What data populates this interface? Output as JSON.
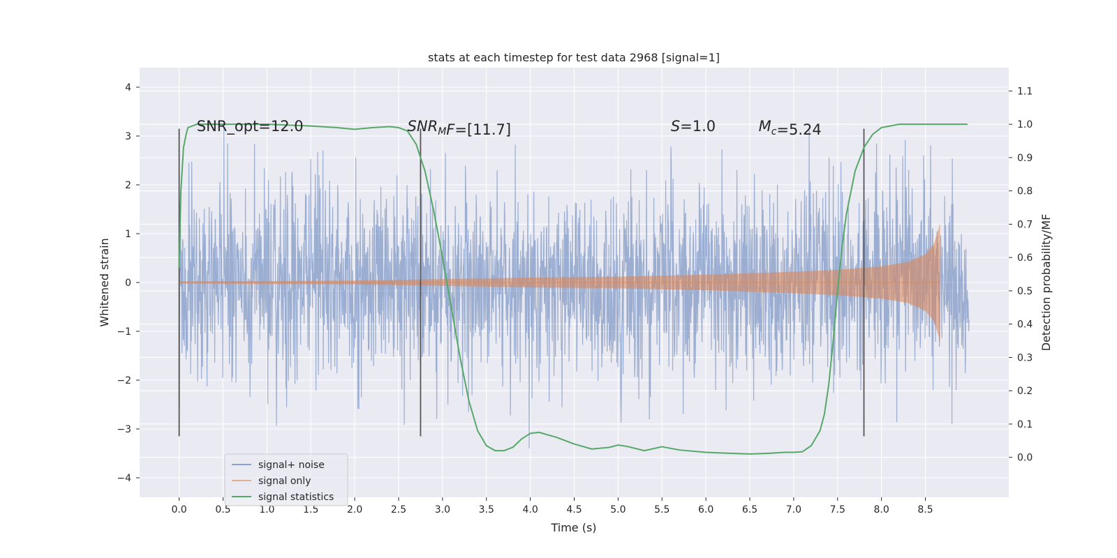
{
  "chart_data": {
    "type": "line",
    "title": "stats at each timestep for test data 2968 [signal=1]",
    "xlabel": "Time (s)",
    "ylabel": "Whitened strain",
    "y2label": "Detection probability/MF",
    "xlim": [
      -0.45,
      9.45
    ],
    "ylim": [
      -4.4,
      4.4
    ],
    "y2lim": [
      -0.12,
      1.17
    ],
    "xticks": [
      0.0,
      0.5,
      1.0,
      1.5,
      2.0,
      2.5,
      3.0,
      3.5,
      4.0,
      4.5,
      5.0,
      5.5,
      6.0,
      6.5,
      7.0,
      7.5,
      8.0,
      8.5
    ],
    "yticks": [
      -4,
      -3,
      -2,
      -1,
      0,
      1,
      2,
      3,
      4
    ],
    "y2ticks": [
      0.0,
      0.1,
      0.2,
      0.3,
      0.4,
      0.5,
      0.6,
      0.7,
      0.8,
      0.9,
      1.0,
      1.1
    ],
    "grid": true,
    "legend_position": "lower-left",
    "colors": {
      "background": "#eaeaf2",
      "grid": "#ffffff",
      "noise": "#4c72b0",
      "signal": "#dd8452",
      "stat": "#55a868",
      "vline": "#555555"
    },
    "annotations": [
      {
        "x": 0.2,
        "y": 3.1,
        "segments": [
          {
            "t": "SNR_opt=12.0",
            "i": false
          }
        ]
      },
      {
        "x": 2.6,
        "y": 3.1,
        "segments": [
          {
            "t": "SNR",
            "i": true
          },
          {
            "t": "M",
            "i": true,
            "sub": true
          },
          {
            "t": "F",
            "i": true
          },
          {
            "t": "=[11.7]",
            "i": false
          }
        ]
      },
      {
        "x": 5.6,
        "y": 3.1,
        "segments": [
          {
            "t": "S",
            "i": true
          },
          {
            "t": "=1.0",
            "i": false
          }
        ]
      },
      {
        "x": 6.6,
        "y": 3.1,
        "segments": [
          {
            "t": "M",
            "i": true
          },
          {
            "t": "c",
            "i": true,
            "sub": true
          },
          {
            "t": "=5.24",
            "i": false
          }
        ]
      }
    ],
    "vlines": [
      {
        "x": 0.0,
        "y": [
          -3.15,
          3.15
        ]
      },
      {
        "x": 2.75,
        "y": [
          -3.15,
          3.15
        ]
      },
      {
        "x": 7.8,
        "y": [
          -3.15,
          3.15
        ]
      }
    ],
    "series": [
      {
        "name": "signal+ noise",
        "axis": "left",
        "color": "#4c72b0",
        "alpha": 0.5,
        "noise": {
          "x_start": 0.0,
          "x_end": 9.0,
          "sigma": 1.0,
          "max_abs": 4.0
        }
      },
      {
        "name": "signal only",
        "axis": "left",
        "color": "#dd8452",
        "alpha": 0.55,
        "chirp_envelope": {
          "x": [
            0.0,
            1.0,
            2.0,
            3.0,
            4.0,
            5.0,
            6.0,
            7.0,
            7.5,
            8.0,
            8.3,
            8.5,
            8.6,
            8.65,
            8.67
          ],
          "amplitude": [
            0.02,
            0.03,
            0.04,
            0.07,
            0.1,
            0.12,
            0.16,
            0.22,
            0.26,
            0.33,
            0.42,
            0.58,
            0.8,
            1.1,
            1.25
          ]
        }
      },
      {
        "name": "signal statistics",
        "axis": "right",
        "color": "#55a868",
        "x": [
          0.0,
          0.02,
          0.05,
          0.08,
          0.1,
          0.15,
          0.2,
          0.3,
          0.5,
          0.8,
          1.0,
          1.2,
          1.5,
          1.8,
          2.0,
          2.2,
          2.4,
          2.5,
          2.6,
          2.7,
          2.8,
          2.9,
          3.0,
          3.1,
          3.2,
          3.3,
          3.4,
          3.5,
          3.6,
          3.7,
          3.8,
          3.9,
          4.0,
          4.1,
          4.3,
          4.5,
          4.7,
          4.9,
          5.0,
          5.1,
          5.3,
          5.5,
          5.7,
          6.0,
          6.3,
          6.5,
          6.7,
          6.9,
          7.0,
          7.1,
          7.2,
          7.3,
          7.35,
          7.4,
          7.45,
          7.5,
          7.55,
          7.6,
          7.7,
          7.8,
          7.9,
          8.0,
          8.2,
          8.4,
          8.6,
          8.8,
          8.98
        ],
        "y": [
          0.57,
          0.8,
          0.93,
          0.97,
          0.99,
          0.995,
          1.0,
          1.0,
          1.0,
          1.0,
          1.0,
          0.998,
          0.995,
          0.99,
          0.985,
          0.99,
          0.993,
          0.99,
          0.98,
          0.94,
          0.86,
          0.74,
          0.6,
          0.45,
          0.3,
          0.17,
          0.08,
          0.035,
          0.02,
          0.02,
          0.03,
          0.055,
          0.072,
          0.075,
          0.06,
          0.04,
          0.025,
          0.03,
          0.037,
          0.033,
          0.02,
          0.032,
          0.022,
          0.015,
          0.012,
          0.01,
          0.012,
          0.015,
          0.015,
          0.017,
          0.035,
          0.08,
          0.13,
          0.22,
          0.35,
          0.5,
          0.63,
          0.73,
          0.86,
          0.93,
          0.97,
          0.99,
          1.0,
          1.0,
          1.0,
          1.0,
          1.0
        ]
      }
    ]
  }
}
